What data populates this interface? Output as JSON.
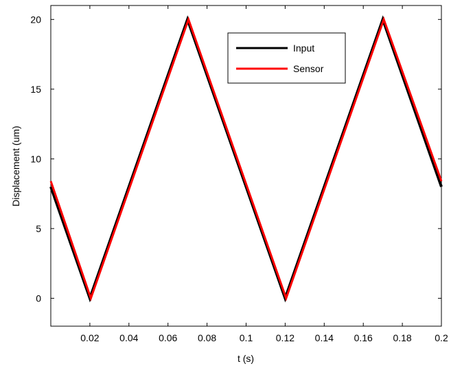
{
  "chart_data": {
    "type": "line",
    "title": "",
    "xlabel": "t (s)",
    "ylabel": "Displacement (um)",
    "xlim": [
      0,
      0.2
    ],
    "ylim": [
      -2,
      21
    ],
    "grid": false,
    "legend_position": "top-right",
    "x_ticks": [
      0.02,
      0.04,
      0.06,
      0.08,
      0.1,
      0.12,
      0.14,
      0.16,
      0.18,
      0.2
    ],
    "x_tick_labels": [
      "0.02",
      "0.04",
      "0.06",
      "0.08",
      "0.1",
      "0.12",
      "0.14",
      "0.16",
      "0.18",
      "0.2"
    ],
    "y_ticks": [
      0,
      5,
      10,
      15,
      20
    ],
    "y_tick_labels": [
      "0",
      "5",
      "10",
      "15",
      "20"
    ],
    "series": [
      {
        "name": "Input",
        "color": "#000000",
        "x": [
          0,
          0.02,
          0.07,
          0.12,
          0.17,
          0.2
        ],
        "y": [
          8.0,
          0,
          20,
          0,
          20,
          8.0
        ]
      },
      {
        "name": "Sensor",
        "color": "#ff0000",
        "x": [
          0,
          0.0205,
          0.0705,
          0.1205,
          0.1705,
          0.2
        ],
        "y": [
          8.4,
          0,
          20,
          0,
          20,
          8.4
        ]
      }
    ]
  }
}
